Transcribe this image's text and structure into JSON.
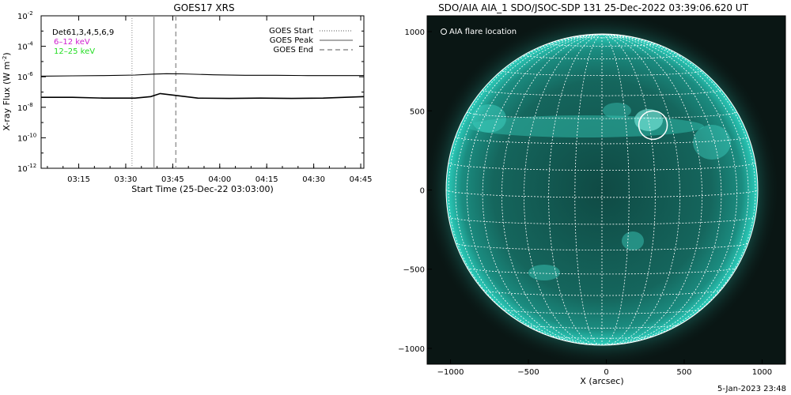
{
  "goes_panel": {
    "title": "GOES17 XRS",
    "ylabel_main": "X-ray Flux (W m",
    "ylabel_exp": "-2",
    "ylabel_close": ")",
    "xlabel": "Start Time (25-Dec-22 03:03:00)",
    "legend_left": [
      {
        "text": "Det61,3,4,5,6,9",
        "color": "#000000"
      },
      {
        "text": "6–12 keV",
        "color": "#d020d0"
      },
      {
        "text": "12–25 keV",
        "color": "#22dd22"
      }
    ],
    "legend_right": [
      {
        "label": "GOES Start",
        "style": "dotted"
      },
      {
        "label": "GOES Peak",
        "style": "solid"
      },
      {
        "label": "GOES End",
        "style": "dashed"
      }
    ]
  },
  "aia_panel": {
    "title": "SDO/AIA AIA_1 SDO/JSOC-SDP 131 25-Dec-2022 03:39:06.620 UT",
    "legend": "AIA flare location",
    "xlabel": "X (arcsec)",
    "flare_location": {
      "x": 300,
      "y": 410
    },
    "colors": {
      "sun": "#1fb8a8",
      "background": "#0a1614",
      "grid": "#ffffff"
    }
  },
  "footer": {
    "date": "5-Jan-2023 23:48"
  },
  "chart_data": [
    {
      "type": "line",
      "title": "GOES17 XRS",
      "xlabel": "Start Time (25-Dec-22 03:03:00)",
      "ylabel": "X-ray Flux (W m^-2)",
      "yscale": "log",
      "xlim": [
        "03:03",
        "04:46"
      ],
      "ylim": [
        1e-12,
        0.01
      ],
      "x_ticks": [
        "03:15",
        "03:30",
        "03:45",
        "04:00",
        "04:15",
        "04:30",
        "04:45"
      ],
      "y_ticks": [
        "10",
        "10",
        "10",
        "10",
        "10",
        "10"
      ],
      "y_tick_exps": [
        "-12",
        "-10",
        "-8",
        "-6",
        "-4",
        "-2"
      ],
      "x_tick_values": [
        735,
        1290,
        1845,
        2400,
        2955,
        3510,
        4065
      ],
      "series": [
        {
          "color": "#000000",
          "x_minutes": [
            0,
            10,
            20,
            30,
            36,
            40,
            45,
            55,
            65,
            75,
            85,
            95,
            103
          ],
          "values": [
            1.1e-06,
            1.15e-06,
            1.2e-06,
            1.3e-06,
            1.5e-06,
            1.6e-06,
            1.55e-06,
            1.35e-06,
            1.25e-06,
            1.25e-06,
            1.2e-06,
            1.2e-06,
            1.2e-06
          ]
        },
        {
          "color": "#000000",
          "x_minutes": [
            0,
            10,
            20,
            30,
            35,
            38,
            43,
            50,
            60,
            70,
            80,
            90,
            103
          ],
          "values": [
            4.5e-08,
            4.5e-08,
            4e-08,
            4e-08,
            5e-08,
            8e-08,
            6e-08,
            4e-08,
            3.8e-08,
            4e-08,
            3.8e-08,
            4e-08,
            5e-08
          ]
        }
      ],
      "events": {
        "start": "03:32",
        "peak": "03:39",
        "end": "03:46"
      }
    },
    {
      "type": "scatter",
      "title": "SDO/AIA AIA_1 SDO/JSOC-SDP 131 25-Dec-2022 03:39:06.620 UT",
      "xlabel": "X (arcsec)",
      "xlim": [
        -1150,
        1150
      ],
      "ylim": [
        -1100,
        1100
      ],
      "x_ticks": [
        -1000,
        -500,
        0,
        500,
        1000
      ],
      "y_ticks": [
        1000,
        500,
        0,
        -500,
        -1000
      ],
      "points": [
        {
          "name": "AIA flare location",
          "x": 300,
          "y": 410
        }
      ]
    }
  ]
}
